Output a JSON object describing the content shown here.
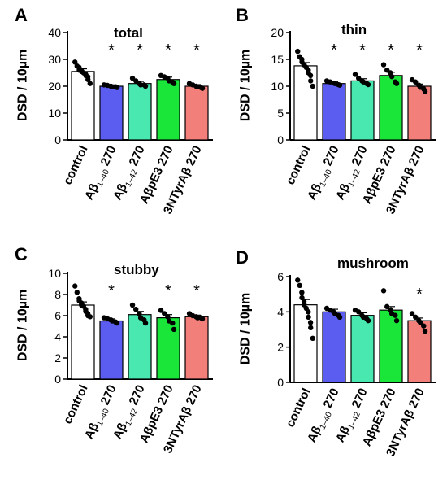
{
  "chart_data": [
    {
      "type": "bar",
      "panel_letter": "A",
      "title": "total",
      "ylabel": "DSD / 10µm",
      "ylim": [
        0,
        40
      ],
      "yticks": [
        0,
        10,
        20,
        30,
        40
      ],
      "categories": [
        "control",
        "Aβ1–40 270",
        "Aβ1–42 270",
        "AβpE3 270",
        "3NTyrAβ 270"
      ],
      "values": [
        25.5,
        20.0,
        21.0,
        22.5,
        20.0
      ],
      "sem": [
        1.0,
        0.5,
        0.8,
        0.9,
        0.6
      ],
      "significant": [
        false,
        true,
        true,
        true,
        true
      ],
      "points": [
        [
          29,
          27.5,
          27,
          26,
          26,
          25.5,
          25,
          24.5,
          24,
          23.5,
          22.5,
          21
        ],
        [
          20.5,
          20.3,
          20,
          19.8,
          19.8,
          19.5
        ],
        [
          23,
          22,
          21,
          20.5,
          20.5,
          20
        ],
        [
          24,
          23.5,
          23,
          22,
          21.5,
          21
        ],
        [
          21,
          20.5,
          20,
          19.8,
          19.5,
          19.2
        ]
      ],
      "bar_colors": [
        "#ffffff",
        "#5b5cf0",
        "#48e8b0",
        "#1ae63a",
        "#f37f7b"
      ]
    },
    {
      "type": "bar",
      "panel_letter": "B",
      "title": "thin",
      "ylabel": "DSD / 10µm",
      "ylim": [
        0,
        20
      ],
      "yticks": [
        0,
        5,
        10,
        15,
        20
      ],
      "categories": [
        "control",
        "Aβ1–40 270",
        "Aβ1–42 270",
        "AβpE3 270",
        "3NTyrAβ 270"
      ],
      "values": [
        13.8,
        10.5,
        11.0,
        12.0,
        10.0
      ],
      "sem": [
        0.6,
        0.3,
        0.4,
        0.6,
        0.4
      ],
      "significant": [
        false,
        true,
        true,
        true,
        true
      ],
      "points": [
        [
          16.5,
          15.5,
          15,
          14.5,
          14,
          14,
          13.5,
          13,
          12.5,
          12,
          11,
          10
        ],
        [
          11,
          10.8,
          10.6,
          10.5,
          10.3,
          10.2
        ],
        [
          12.2,
          11.5,
          11,
          10.8,
          10.5,
          10.3
        ],
        [
          14,
          13,
          12.5,
          11.8,
          10.8,
          10.5
        ],
        [
          11.2,
          10.8,
          10.2,
          9.8,
          9.5,
          9.0
        ]
      ],
      "bar_colors": [
        "#ffffff",
        "#5b5cf0",
        "#48e8b0",
        "#1ae63a",
        "#f37f7b"
      ]
    },
    {
      "type": "bar",
      "panel_letter": "C",
      "title": "stubby",
      "ylabel": "DSD / 10µm",
      "ylim": [
        0,
        10
      ],
      "yticks": [
        0,
        2,
        4,
        6,
        8,
        10
      ],
      "categories": [
        "control",
        "Aβ1–40 270",
        "Aβ1–42 270",
        "AβpE3 270",
        "3NTyrAβ 270"
      ],
      "values": [
        7.0,
        5.5,
        6.1,
        5.8,
        5.9
      ],
      "sem": [
        0.3,
        0.2,
        0.3,
        0.3,
        0.15
      ],
      "significant": [
        false,
        true,
        false,
        true,
        true
      ],
      "points": [
        [
          8.8,
          8.2,
          7.6,
          7.4,
          7.2,
          7.0,
          6.9,
          6.6,
          6.4,
          6.2,
          6.0,
          5.9
        ],
        [
          5.8,
          5.7,
          5.6,
          5.5,
          5.4,
          5.3
        ],
        [
          7.0,
          6.6,
          6.2,
          5.8,
          5.6,
          5.3
        ],
        [
          6.5,
          6.2,
          5.9,
          5.5,
          5.3,
          4.7
        ],
        [
          6.2,
          6.0,
          5.9,
          5.8,
          5.8,
          5.7
        ]
      ],
      "bar_colors": [
        "#ffffff",
        "#5b5cf0",
        "#48e8b0",
        "#1ae63a",
        "#f37f7b"
      ]
    },
    {
      "type": "bar",
      "panel_letter": "D",
      "title": "mushroom",
      "ylabel": "DSD / 10µm",
      "ylim": [
        0,
        6
      ],
      "yticks": [
        0,
        2,
        4,
        6
      ],
      "categories": [
        "control",
        "Aβ1–40 270",
        "Aβ1–42 270",
        "AβpE3 270",
        "3NTyrAβ 270"
      ],
      "values": [
        4.4,
        4.0,
        3.8,
        4.1,
        3.5
      ],
      "sem": [
        0.3,
        0.15,
        0.15,
        0.2,
        0.15
      ],
      "significant": [
        false,
        false,
        false,
        false,
        true
      ],
      "points": [
        [
          5.8,
          5.5,
          5.1,
          4.8,
          4.6,
          4.4,
          4.2,
          4.0,
          3.7,
          3.4,
          3.1,
          2.5
        ],
        [
          4.2,
          4.1,
          4.0,
          3.9,
          3.8,
          3.7
        ],
        [
          4.1,
          4.0,
          3.8,
          3.7,
          3.6,
          3.5
        ],
        [
          5.2,
          4.3,
          4.1,
          3.9,
          3.8,
          3.5
        ],
        [
          3.9,
          3.7,
          3.5,
          3.4,
          3.2,
          2.9
        ]
      ],
      "bar_colors": [
        "#ffffff",
        "#5b5cf0",
        "#48e8b0",
        "#1ae63a",
        "#f37f7b"
      ]
    }
  ]
}
